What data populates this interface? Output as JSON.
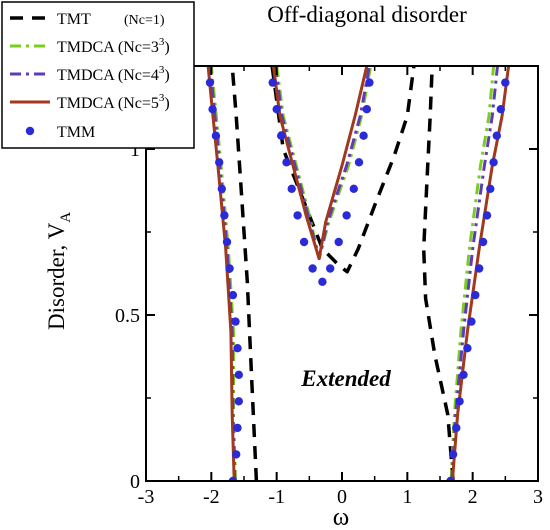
{
  "chart_data": {
    "type": "line",
    "title": "Off-diagonal disorder",
    "xlabel": "ω",
    "ylabel": "Disorder, V",
    "ylabel_sub": "A",
    "annotation": "Extended",
    "xlim": [
      -3,
      3
    ],
    "ylim": [
      0,
      1.25
    ],
    "xticks": [
      "-3",
      "-2",
      "-1",
      "0",
      "1",
      "2",
      "3"
    ],
    "yticks": [
      "0",
      "0.5",
      "1"
    ],
    "legend_position": "top-left",
    "series": [
      {
        "name": "TMT",
        "label_extra": "(Nc=1)",
        "color": "#000000",
        "style": "dashed",
        "branches": [
          [
            [
              -1.31,
              0
            ],
            [
              -1.38,
              0.3
            ],
            [
              -1.45,
              0.6
            ],
            [
              -1.55,
              0.9
            ],
            [
              -1.62,
              1.1
            ],
            [
              -1.68,
              1.25
            ]
          ],
          [
            [
              -1.07,
              1.25
            ],
            [
              -0.9,
              1.0
            ],
            [
              -0.6,
              0.85
            ],
            [
              -0.3,
              0.7
            ],
            [
              -0.05,
              0.65
            ],
            [
              0.08,
              0.63
            ],
            [
              0.25,
              0.7
            ],
            [
              0.5,
              0.83
            ],
            [
              0.8,
              0.98
            ],
            [
              1.0,
              1.1
            ],
            [
              1.1,
              1.25
            ]
          ],
          [
            [
              1.7,
              0
            ],
            [
              1.62,
              0.2
            ],
            [
              1.42,
              0.38
            ],
            [
              1.28,
              0.55
            ],
            [
              1.25,
              0.7
            ],
            [
              1.3,
              0.9
            ],
            [
              1.35,
              1.1
            ],
            [
              1.38,
              1.25
            ]
          ]
        ]
      },
      {
        "name": "TMDCA (Nc=3",
        "name_sup": "3",
        "name_close": ")",
        "color": "#7acc1f",
        "style": "dashdot",
        "branches": [
          [
            [
              -1.63,
              0
            ],
            [
              -1.66,
              0.2
            ],
            [
              -1.66,
              0.45
            ],
            [
              -1.74,
              0.7
            ],
            [
              -1.85,
              0.95
            ],
            [
              -1.95,
              1.15
            ],
            [
              -2.0,
              1.25
            ]
          ],
          [
            [
              -1.0,
              1.25
            ],
            [
              -0.9,
              1.1
            ],
            [
              -0.7,
              0.95
            ],
            [
              -0.5,
              0.8
            ],
            [
              -0.35,
              0.67
            ],
            [
              -0.2,
              0.78
            ],
            [
              0.1,
              0.95
            ],
            [
              0.3,
              1.1
            ],
            [
              0.44,
              1.25
            ]
          ],
          [
            [
              1.67,
              0
            ],
            [
              1.72,
              0.2
            ],
            [
              1.82,
              0.45
            ],
            [
              1.95,
              0.7
            ],
            [
              2.12,
              0.95
            ],
            [
              2.25,
              1.1
            ],
            [
              2.32,
              1.25
            ]
          ]
        ]
      },
      {
        "name": "TMDCA (Nc=4",
        "name_sup": "3",
        "name_close": ")",
        "color": "#5e3cb8",
        "style": "dashdot",
        "branches": [
          [
            [
              -1.64,
              0
            ],
            [
              -1.67,
              0.2
            ],
            [
              -1.68,
              0.45
            ],
            [
              -1.76,
              0.7
            ],
            [
              -1.87,
              0.95
            ],
            [
              -1.97,
              1.15
            ],
            [
              -2.02,
              1.25
            ]
          ],
          [
            [
              -1.02,
              1.25
            ],
            [
              -0.92,
              1.1
            ],
            [
              -0.72,
              0.95
            ],
            [
              -0.52,
              0.8
            ],
            [
              -0.35,
              0.67
            ],
            [
              -0.22,
              0.78
            ],
            [
              0.07,
              0.95
            ],
            [
              0.28,
              1.1
            ],
            [
              0.42,
              1.25
            ]
          ],
          [
            [
              1.68,
              0
            ],
            [
              1.74,
              0.2
            ],
            [
              1.86,
              0.45
            ],
            [
              2.0,
              0.7
            ],
            [
              2.18,
              0.95
            ],
            [
              2.3,
              1.1
            ],
            [
              2.38,
              1.25
            ]
          ]
        ]
      },
      {
        "name": "TMDCA (Nc=5",
        "name_sup": "3",
        "name_close": ")",
        "color": "#a0391d",
        "style": "solid",
        "branches": [
          [
            [
              -1.65,
              0
            ],
            [
              -1.68,
              0.2
            ],
            [
              -1.7,
              0.45
            ],
            [
              -1.78,
              0.7
            ],
            [
              -1.9,
              0.95
            ],
            [
              -2.0,
              1.15
            ],
            [
              -2.05,
              1.25
            ]
          ],
          [
            [
              -1.05,
              1.25
            ],
            [
              -0.95,
              1.1
            ],
            [
              -0.75,
              0.95
            ],
            [
              -0.55,
              0.8
            ],
            [
              -0.35,
              0.67
            ],
            [
              -0.25,
              0.78
            ],
            [
              0.0,
              0.95
            ],
            [
              0.2,
              1.1
            ],
            [
              0.38,
              1.25
            ]
          ],
          [
            [
              1.69,
              0
            ],
            [
              1.77,
              0.2
            ],
            [
              1.92,
              0.45
            ],
            [
              2.1,
              0.7
            ],
            [
              2.3,
              0.95
            ],
            [
              2.45,
              1.1
            ],
            [
              2.55,
              1.25
            ]
          ]
        ]
      },
      {
        "name": "TMM",
        "color": "#2a2ad8",
        "style": "markers",
        "points": [
          [
            -1.67,
            0.0
          ],
          [
            -1.62,
            0.08
          ],
          [
            -1.6,
            0.16
          ],
          [
            -1.58,
            0.24
          ],
          [
            -1.58,
            0.32
          ],
          [
            -1.6,
            0.4
          ],
          [
            -1.63,
            0.48
          ],
          [
            -1.67,
            0.56
          ],
          [
            -1.72,
            0.64
          ],
          [
            -1.76,
            0.72
          ],
          [
            -1.8,
            0.8
          ],
          [
            -1.84,
            0.88
          ],
          [
            -1.88,
            0.96
          ],
          [
            -1.93,
            1.04
          ],
          [
            -1.98,
            1.12
          ],
          [
            -2.02,
            1.2
          ],
          [
            -1.06,
            1.2
          ],
          [
            -1.0,
            1.12
          ],
          [
            -0.93,
            1.04
          ],
          [
            -0.85,
            0.96
          ],
          [
            -0.77,
            0.88
          ],
          [
            -0.68,
            0.8
          ],
          [
            -0.58,
            0.72
          ],
          [
            -0.45,
            0.64
          ],
          [
            -0.3,
            0.6
          ],
          [
            -0.18,
            0.64
          ],
          [
            -0.05,
            0.72
          ],
          [
            0.07,
            0.8
          ],
          [
            0.18,
            0.88
          ],
          [
            0.26,
            0.96
          ],
          [
            0.33,
            1.04
          ],
          [
            0.38,
            1.12
          ],
          [
            0.42,
            1.2
          ],
          [
            1.66,
            0.0
          ],
          [
            1.7,
            0.08
          ],
          [
            1.75,
            0.16
          ],
          [
            1.8,
            0.24
          ],
          [
            1.86,
            0.32
          ],
          [
            1.92,
            0.4
          ],
          [
            1.98,
            0.48
          ],
          [
            2.04,
            0.56
          ],
          [
            2.1,
            0.64
          ],
          [
            2.16,
            0.72
          ],
          [
            2.22,
            0.8
          ],
          [
            2.27,
            0.88
          ],
          [
            2.32,
            0.96
          ],
          [
            2.37,
            1.04
          ],
          [
            2.43,
            1.12
          ],
          [
            2.5,
            1.2
          ]
        ]
      }
    ]
  }
}
